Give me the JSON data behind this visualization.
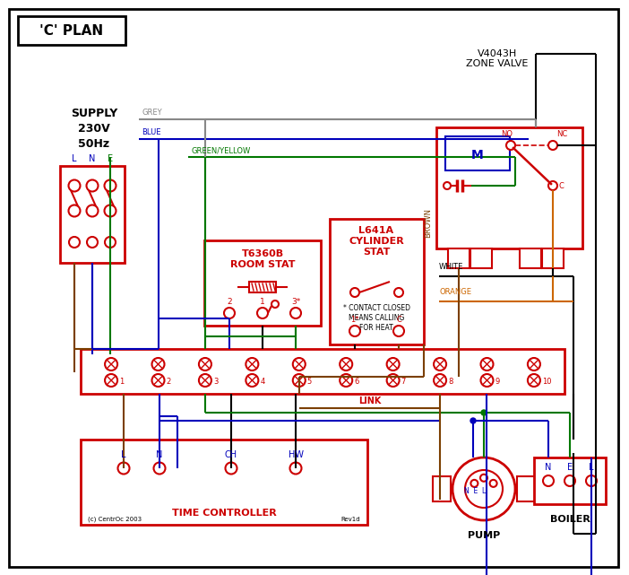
{
  "title": "'C' PLAN",
  "bg_color": "#ffffff",
  "red": "#cc0000",
  "blue": "#0000bb",
  "green": "#007700",
  "grey": "#888888",
  "brown": "#7B3F00",
  "orange": "#cc6600",
  "black": "#000000",
  "copyright": "(c) CentrOc 2003",
  "rev": "Rev1d"
}
